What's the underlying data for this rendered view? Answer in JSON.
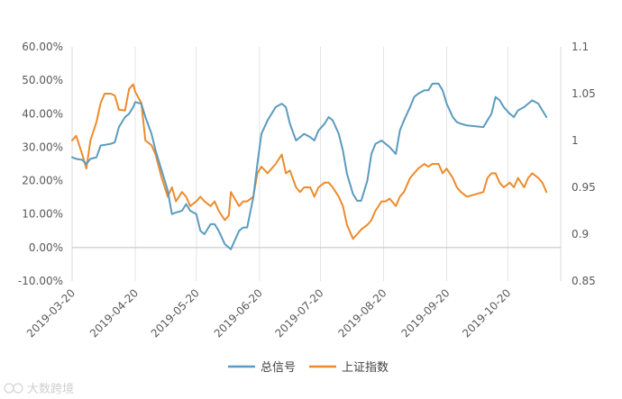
{
  "chart_data": {
    "type": "line",
    "title": "",
    "xlabel": "",
    "ylabel": "",
    "x_range": [
      "2019-03-20",
      "2019-11-15"
    ],
    "x_ticks": [
      "2019-03-20",
      "2019-04-20",
      "2019-05-20",
      "2019-06-20",
      "2019-07-20",
      "2019-08-20",
      "2019-09-20",
      "2019-10-20"
    ],
    "y_left": {
      "range": [
        -0.1,
        0.6
      ],
      "ticks": [
        "-10.00%",
        "0.00%",
        "10.00%",
        "20.00%",
        "30.00%",
        "40.00%",
        "50.00%",
        "60.00%"
      ]
    },
    "y_right": {
      "range": [
        0.85,
        1.1
      ],
      "ticks": [
        "0.85",
        "0.9",
        "0.95",
        "1",
        "1.05",
        "1.1"
      ]
    },
    "grid": "vertical",
    "legend_position": "bottom",
    "series": [
      {
        "name": "总信号",
        "axis": "left",
        "color": "#5B9BBF",
        "points": [
          [
            "2019-03-20",
            0.27
          ],
          [
            "2019-03-22",
            0.265
          ],
          [
            "2019-03-25",
            0.262
          ],
          [
            "2019-03-27",
            0.25
          ],
          [
            "2019-03-29",
            0.265
          ],
          [
            "2019-04-01",
            0.27
          ],
          [
            "2019-04-03",
            0.305
          ],
          [
            "2019-04-08",
            0.31
          ],
          [
            "2019-04-10",
            0.315
          ],
          [
            "2019-04-12",
            0.36
          ],
          [
            "2019-04-15",
            0.39
          ],
          [
            "2019-04-17",
            0.4
          ],
          [
            "2019-04-19",
            0.42
          ],
          [
            "2019-04-20",
            0.435
          ],
          [
            "2019-04-23",
            0.43
          ],
          [
            "2019-04-25",
            0.39
          ],
          [
            "2019-04-28",
            0.34
          ],
          [
            "2019-04-30",
            0.29
          ],
          [
            "2019-05-03",
            0.23
          ],
          [
            "2019-05-06",
            0.17
          ],
          [
            "2019-05-08",
            0.1
          ],
          [
            "2019-05-10",
            0.105
          ],
          [
            "2019-05-13",
            0.11
          ],
          [
            "2019-05-15",
            0.13
          ],
          [
            "2019-05-17",
            0.11
          ],
          [
            "2019-05-20",
            0.1
          ],
          [
            "2019-05-22",
            0.05
          ],
          [
            "2019-05-24",
            0.04
          ],
          [
            "2019-05-27",
            0.07
          ],
          [
            "2019-05-29",
            0.07
          ],
          [
            "2019-05-31",
            0.05
          ],
          [
            "2019-06-03",
            0.01
          ],
          [
            "2019-06-05",
            0.0
          ],
          [
            "2019-06-06",
            -0.005
          ],
          [
            "2019-06-10",
            0.05
          ],
          [
            "2019-06-12",
            0.06
          ],
          [
            "2019-06-14",
            0.06
          ],
          [
            "2019-06-17",
            0.15
          ],
          [
            "2019-06-19",
            0.25
          ],
          [
            "2019-06-21",
            0.34
          ],
          [
            "2019-06-24",
            0.38
          ],
          [
            "2019-06-26",
            0.4
          ],
          [
            "2019-06-28",
            0.42
          ],
          [
            "2019-07-01",
            0.43
          ],
          [
            "2019-07-03",
            0.42
          ],
          [
            "2019-07-05",
            0.37
          ],
          [
            "2019-07-08",
            0.32
          ],
          [
            "2019-07-10",
            0.33
          ],
          [
            "2019-07-12",
            0.34
          ],
          [
            "2019-07-15",
            0.33
          ],
          [
            "2019-07-17",
            0.32
          ],
          [
            "2019-07-19",
            0.35
          ],
          [
            "2019-07-22",
            0.37
          ],
          [
            "2019-07-24",
            0.39
          ],
          [
            "2019-07-26",
            0.38
          ],
          [
            "2019-07-29",
            0.34
          ],
          [
            "2019-07-31",
            0.29
          ],
          [
            "2019-08-02",
            0.22
          ],
          [
            "2019-08-05",
            0.16
          ],
          [
            "2019-08-07",
            0.14
          ],
          [
            "2019-08-09",
            0.14
          ],
          [
            "2019-08-12",
            0.2
          ],
          [
            "2019-08-14",
            0.28
          ],
          [
            "2019-08-16",
            0.31
          ],
          [
            "2019-08-19",
            0.32
          ],
          [
            "2019-08-21",
            0.31
          ],
          [
            "2019-08-23",
            0.3
          ],
          [
            "2019-08-26",
            0.28
          ],
          [
            "2019-08-28",
            0.35
          ],
          [
            "2019-08-30",
            0.38
          ],
          [
            "2019-09-02",
            0.42
          ],
          [
            "2019-09-04",
            0.45
          ],
          [
            "2019-09-06",
            0.46
          ],
          [
            "2019-09-09",
            0.47
          ],
          [
            "2019-09-11",
            0.47
          ],
          [
            "2019-09-13",
            0.49
          ],
          [
            "2019-09-16",
            0.49
          ],
          [
            "2019-09-18",
            0.47
          ],
          [
            "2019-09-20",
            0.43
          ],
          [
            "2019-09-23",
            0.39
          ],
          [
            "2019-09-25",
            0.375
          ],
          [
            "2019-09-27",
            0.37
          ],
          [
            "2019-09-30",
            0.365
          ],
          [
            "2019-10-08",
            0.36
          ],
          [
            "2019-10-10",
            0.38
          ],
          [
            "2019-10-12",
            0.4
          ],
          [
            "2019-10-14",
            0.45
          ],
          [
            "2019-10-16",
            0.44
          ],
          [
            "2019-10-18",
            0.42
          ],
          [
            "2019-10-21",
            0.4
          ],
          [
            "2019-10-23",
            0.39
          ],
          [
            "2019-10-25",
            0.41
          ],
          [
            "2019-10-28",
            0.42
          ],
          [
            "2019-10-30",
            0.43
          ],
          [
            "2019-11-01",
            0.44
          ],
          [
            "2019-11-04",
            0.43
          ],
          [
            "2019-11-06",
            0.41
          ],
          [
            "2019-11-08",
            0.39
          ]
        ]
      },
      {
        "name": "上证指数",
        "axis": "right",
        "color": "#ED8B2C",
        "points": [
          [
            "2019-03-20",
            1.0
          ],
          [
            "2019-03-22",
            1.005
          ],
          [
            "2019-03-25",
            0.985
          ],
          [
            "2019-03-27",
            0.97
          ],
          [
            "2019-03-29",
            1.0
          ],
          [
            "2019-04-01",
            1.02
          ],
          [
            "2019-04-03",
            1.04
          ],
          [
            "2019-04-05",
            1.05
          ],
          [
            "2019-04-08",
            1.05
          ],
          [
            "2019-04-10",
            1.048
          ],
          [
            "2019-04-12",
            1.033
          ],
          [
            "2019-04-15",
            1.032
          ],
          [
            "2019-04-17",
            1.055
          ],
          [
            "2019-04-19",
            1.06
          ],
          [
            "2019-04-20",
            1.052
          ],
          [
            "2019-04-23",
            1.04
          ],
          [
            "2019-04-25",
            1.0
          ],
          [
            "2019-04-28",
            0.995
          ],
          [
            "2019-04-30",
            0.985
          ],
          [
            "2019-05-03",
            0.96
          ],
          [
            "2019-05-06",
            0.94
          ],
          [
            "2019-05-08",
            0.95
          ],
          [
            "2019-05-10",
            0.935
          ],
          [
            "2019-05-13",
            0.945
          ],
          [
            "2019-05-15",
            0.94
          ],
          [
            "2019-05-17",
            0.93
          ],
          [
            "2019-05-20",
            0.935
          ],
          [
            "2019-05-22",
            0.94
          ],
          [
            "2019-05-24",
            0.935
          ],
          [
            "2019-05-27",
            0.93
          ],
          [
            "2019-05-29",
            0.935
          ],
          [
            "2019-05-31",
            0.925
          ],
          [
            "2019-06-03",
            0.915
          ],
          [
            "2019-06-05",
            0.92
          ],
          [
            "2019-06-06",
            0.945
          ],
          [
            "2019-06-10",
            0.93
          ],
          [
            "2019-06-12",
            0.935
          ],
          [
            "2019-06-14",
            0.935
          ],
          [
            "2019-06-17",
            0.94
          ],
          [
            "2019-06-19",
            0.965
          ],
          [
            "2019-06-21",
            0.972
          ],
          [
            "2019-06-24",
            0.965
          ],
          [
            "2019-06-26",
            0.97
          ],
          [
            "2019-06-28",
            0.975
          ],
          [
            "2019-07-01",
            0.985
          ],
          [
            "2019-07-03",
            0.965
          ],
          [
            "2019-07-05",
            0.968
          ],
          [
            "2019-07-08",
            0.95
          ],
          [
            "2019-07-10",
            0.945
          ],
          [
            "2019-07-12",
            0.95
          ],
          [
            "2019-07-15",
            0.95
          ],
          [
            "2019-07-17",
            0.94
          ],
          [
            "2019-07-19",
            0.95
          ],
          [
            "2019-07-22",
            0.955
          ],
          [
            "2019-07-24",
            0.955
          ],
          [
            "2019-07-26",
            0.95
          ],
          [
            "2019-07-29",
            0.94
          ],
          [
            "2019-07-31",
            0.93
          ],
          [
            "2019-08-02",
            0.91
          ],
          [
            "2019-08-05",
            0.895
          ],
          [
            "2019-08-07",
            0.9
          ],
          [
            "2019-08-09",
            0.905
          ],
          [
            "2019-08-12",
            0.91
          ],
          [
            "2019-08-14",
            0.915
          ],
          [
            "2019-08-16",
            0.925
          ],
          [
            "2019-08-19",
            0.935
          ],
          [
            "2019-08-21",
            0.935
          ],
          [
            "2019-08-23",
            0.938
          ],
          [
            "2019-08-26",
            0.93
          ],
          [
            "2019-08-28",
            0.94
          ],
          [
            "2019-08-30",
            0.945
          ],
          [
            "2019-09-02",
            0.96
          ],
          [
            "2019-09-04",
            0.965
          ],
          [
            "2019-09-06",
            0.97
          ],
          [
            "2019-09-09",
            0.975
          ],
          [
            "2019-09-11",
            0.972
          ],
          [
            "2019-09-13",
            0.975
          ],
          [
            "2019-09-16",
            0.975
          ],
          [
            "2019-09-18",
            0.965
          ],
          [
            "2019-09-20",
            0.97
          ],
          [
            "2019-09-23",
            0.96
          ],
          [
            "2019-09-25",
            0.95
          ],
          [
            "2019-09-27",
            0.945
          ],
          [
            "2019-09-30",
            0.94
          ],
          [
            "2019-10-08",
            0.945
          ],
          [
            "2019-10-10",
            0.96
          ],
          [
            "2019-10-12",
            0.965
          ],
          [
            "2019-10-14",
            0.965
          ],
          [
            "2019-10-16",
            0.955
          ],
          [
            "2019-10-18",
            0.95
          ],
          [
            "2019-10-21",
            0.955
          ],
          [
            "2019-10-23",
            0.95
          ],
          [
            "2019-10-25",
            0.96
          ],
          [
            "2019-10-28",
            0.95
          ],
          [
            "2019-10-30",
            0.96
          ],
          [
            "2019-11-01",
            0.965
          ],
          [
            "2019-11-04",
            0.96
          ],
          [
            "2019-11-06",
            0.955
          ],
          [
            "2019-11-08",
            0.945
          ]
        ]
      }
    ]
  },
  "watermark": {
    "text": "大数跨境"
  }
}
